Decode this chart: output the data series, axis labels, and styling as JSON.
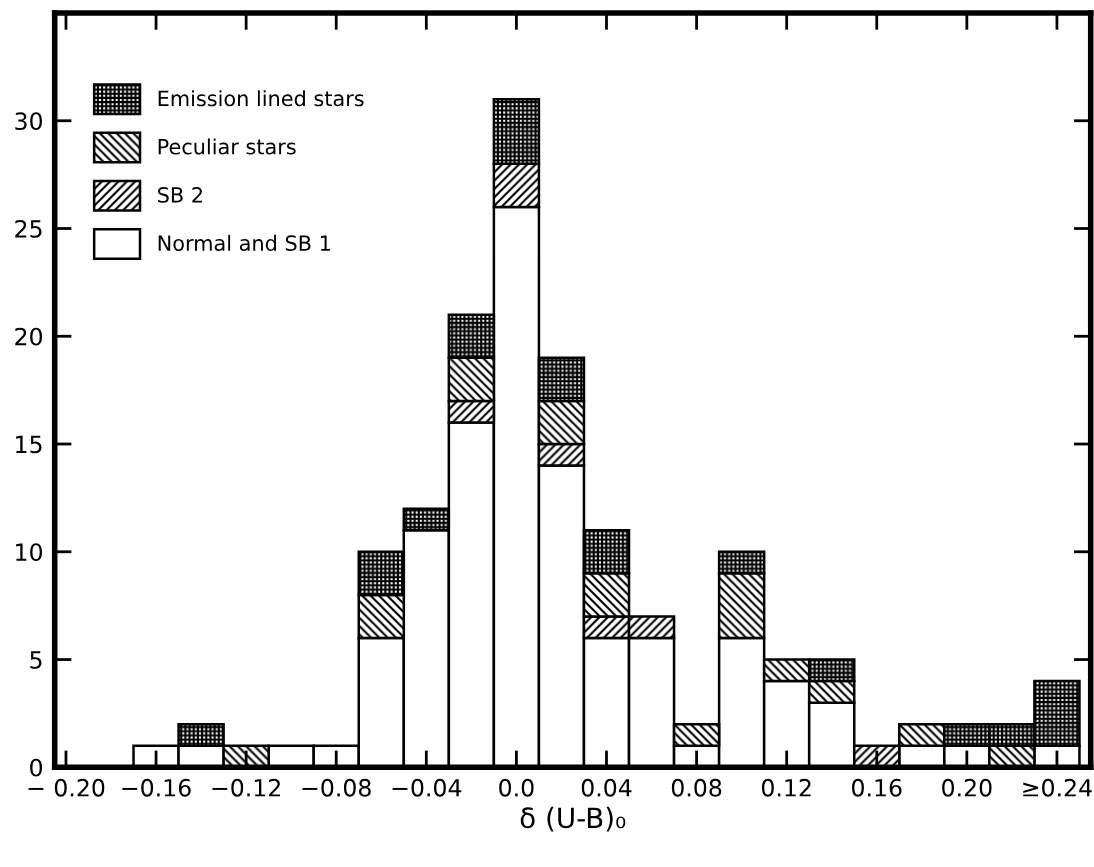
{
  "chart_data": {
    "type": "bar",
    "stacked": true,
    "xlabel": "δ (U-B)₀",
    "x": [
      -0.16,
      -0.14,
      -0.12,
      -0.1,
      -0.08,
      -0.06,
      -0.04,
      -0.02,
      0.0,
      0.02,
      0.04,
      0.06,
      0.08,
      0.1,
      0.12,
      0.14,
      0.16,
      0.18,
      0.2,
      0.22,
      0.24
    ],
    "series": [
      {
        "name": "Normal and SB 1",
        "color": "#000000",
        "values": [
          1,
          1,
          0,
          1,
          1,
          6,
          11,
          16,
          26,
          14,
          6,
          6,
          1,
          6,
          4,
          3,
          0,
          1,
          1,
          0,
          1
        ]
      },
      {
        "name": "SB 2",
        "color": "#000000",
        "values": [
          0,
          0,
          0,
          0,
          0,
          0,
          0,
          1,
          2,
          1,
          1,
          1,
          0,
          0,
          0,
          0,
          1,
          0,
          0,
          0,
          0
        ]
      },
      {
        "name": "Peculiar stars",
        "color": "#000000",
        "values": [
          0,
          0,
          1,
          0,
          0,
          2,
          0,
          2,
          0,
          2,
          2,
          0,
          1,
          3,
          1,
          1,
          0,
          1,
          0,
          1,
          0
        ]
      },
      {
        "name": "Emission lined stars",
        "color": "#000000",
        "values": [
          0,
          1,
          0,
          0,
          0,
          2,
          1,
          2,
          3,
          2,
          2,
          0,
          0,
          1,
          0,
          1,
          0,
          0,
          1,
          1,
          3
        ]
      }
    ],
    "xlim": [
      -0.205,
      0.255
    ],
    "ylim": [
      0,
      35
    ],
    "xticks": [
      {
        "value": -0.2,
        "label": "− 0.20"
      },
      {
        "value": -0.16,
        "label": "−0.16"
      },
      {
        "value": -0.12,
        "label": "−0.12"
      },
      {
        "value": -0.08,
        "label": "−0.08"
      },
      {
        "value": -0.04,
        "label": "−0.04"
      },
      {
        "value": 0.0,
        "label": "0.0"
      },
      {
        "value": 0.04,
        "label": "0.04"
      },
      {
        "value": 0.08,
        "label": "0.08"
      },
      {
        "value": 0.12,
        "label": "0.12"
      },
      {
        "value": 0.16,
        "label": "0.16"
      },
      {
        "value": 0.2,
        "label": "0.20"
      },
      {
        "value": 0.24,
        "label": "≥0.24"
      }
    ],
    "yticks": [
      0,
      5,
      10,
      15,
      20,
      25,
      30
    ],
    "grid": false,
    "legend": "top left"
  }
}
